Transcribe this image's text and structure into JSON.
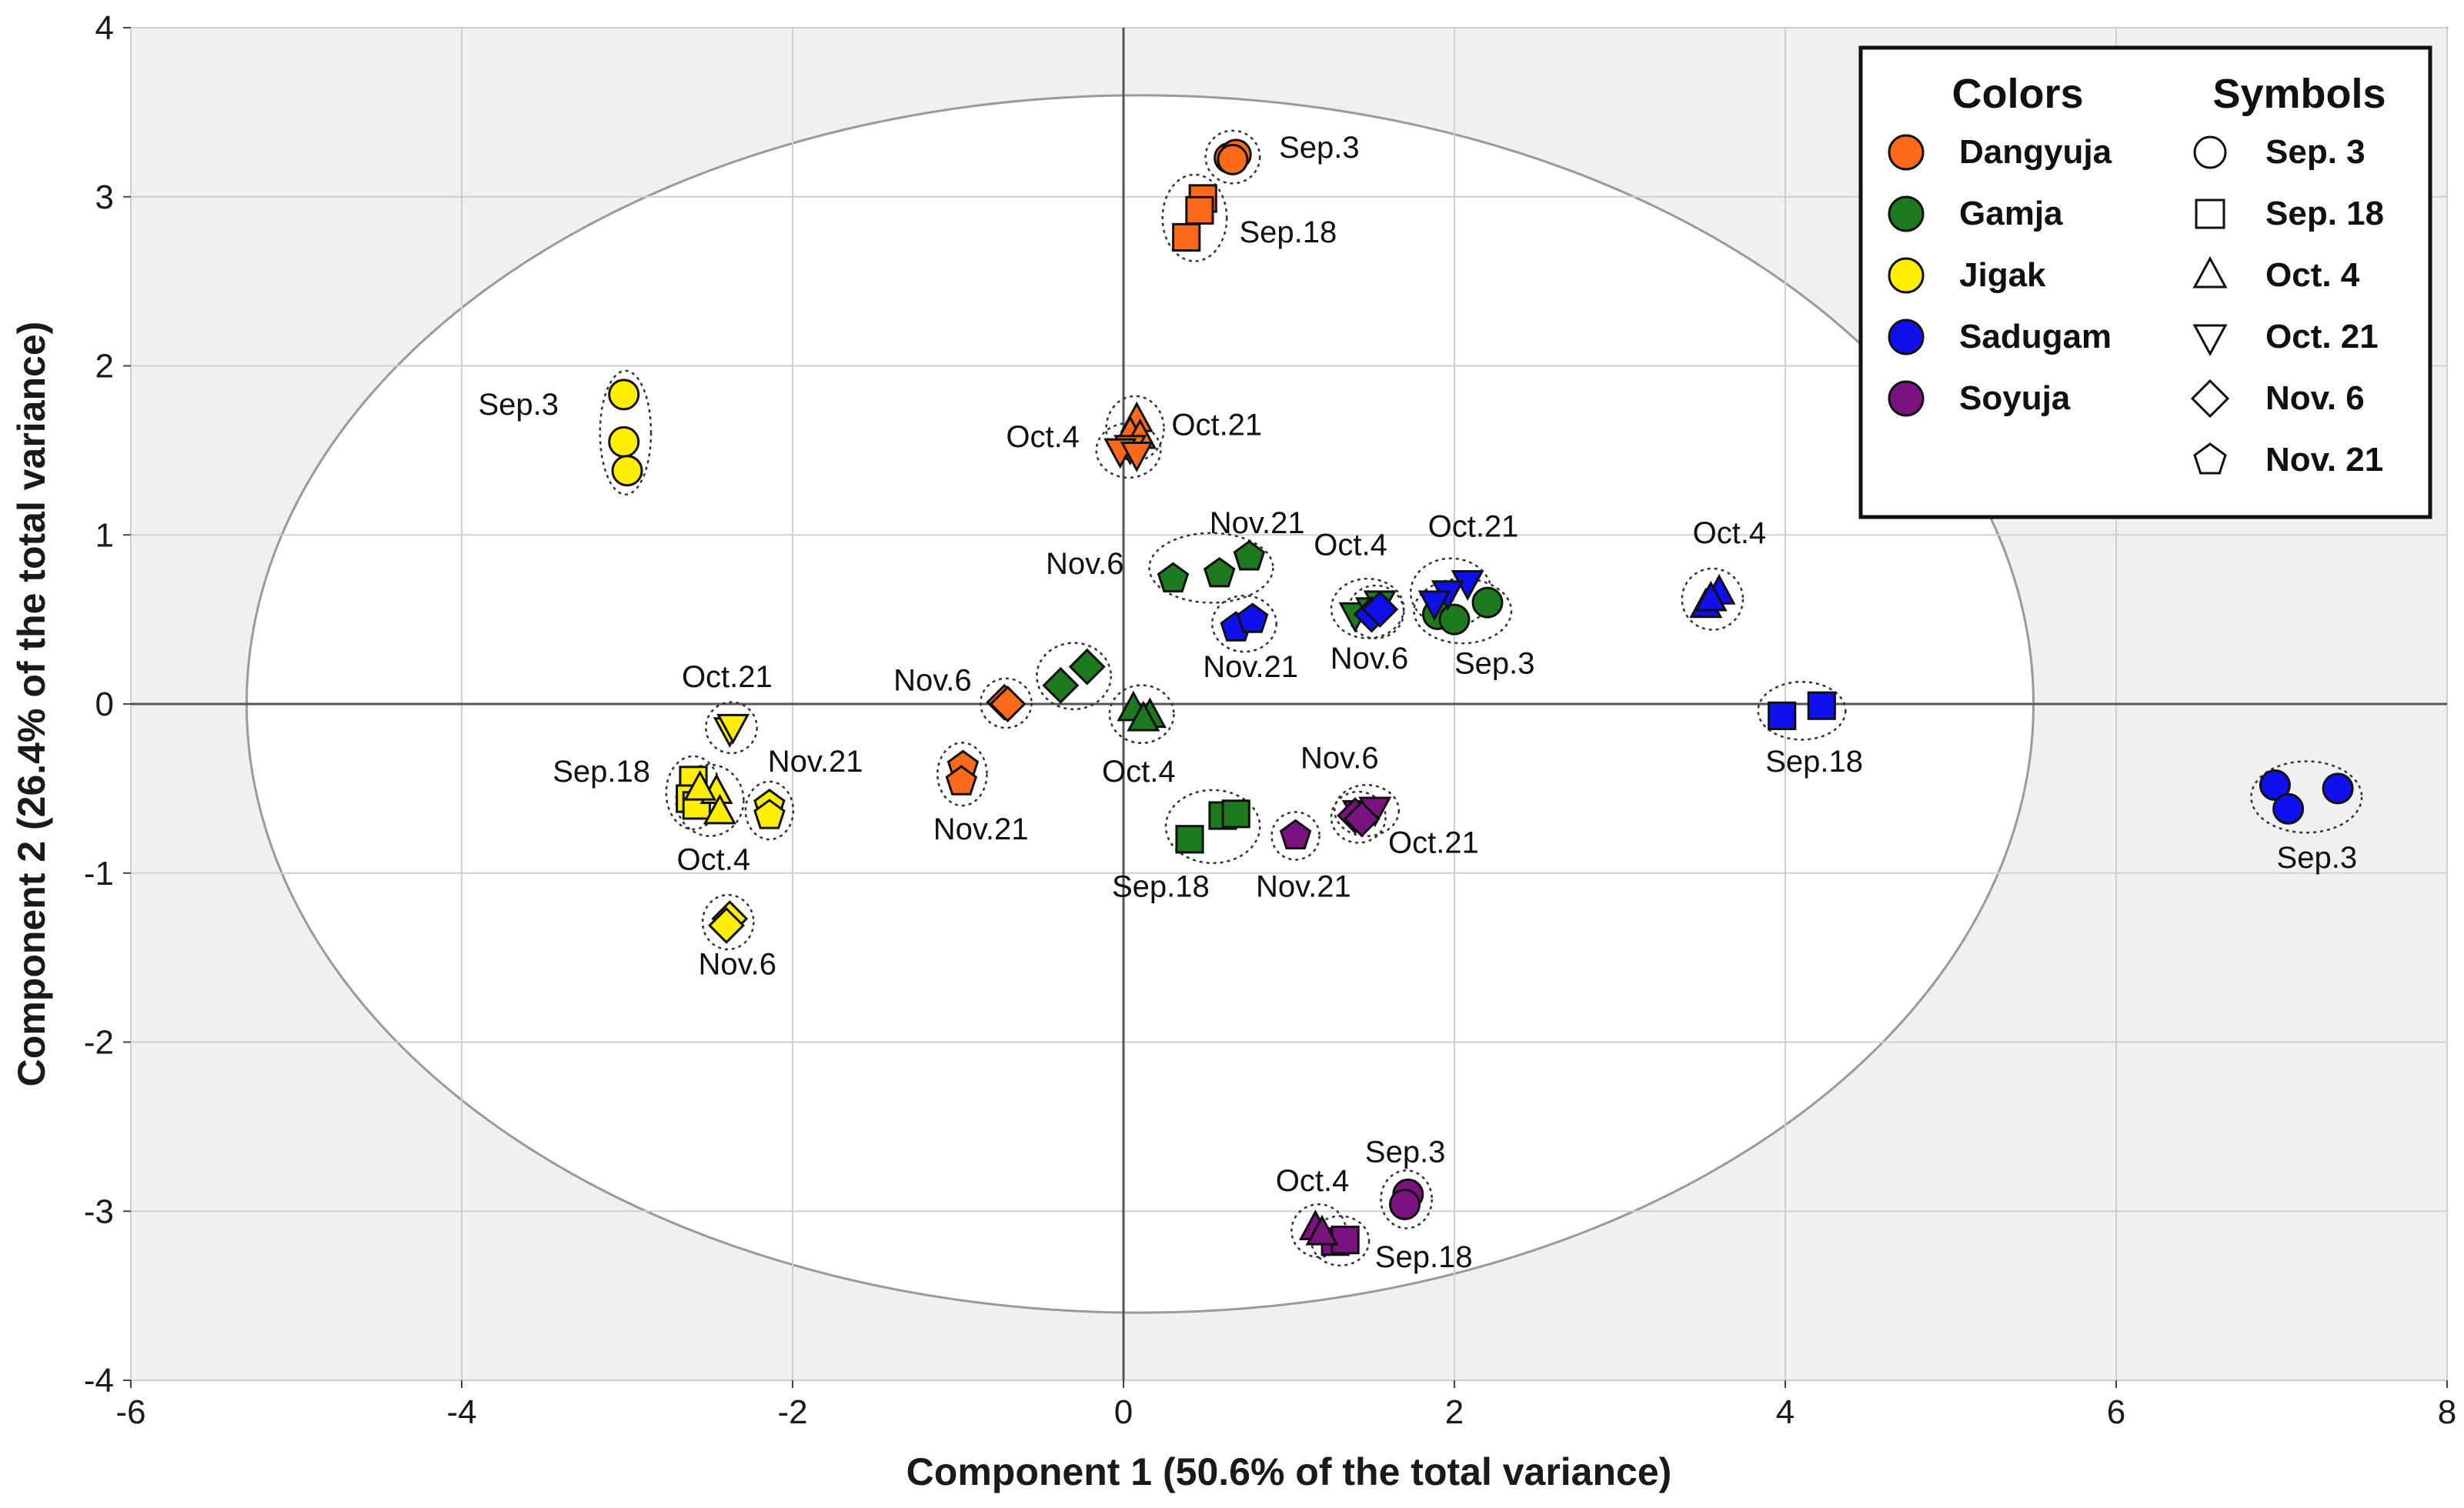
{
  "chart_data": {
    "type": "scatter",
    "xlabel": "Component 1 (50.6% of the total variance)",
    "ylabel": "Component 2 (26.4% of the total variance)",
    "xlim": [
      -6,
      8
    ],
    "ylim": [
      -4,
      4
    ],
    "xticks": [
      -6,
      -4,
      -2,
      0,
      2,
      4,
      6,
      8
    ],
    "yticks": [
      -4,
      -3,
      -2,
      -1,
      0,
      1,
      2,
      3,
      4
    ],
    "grid": true,
    "confidence_ellipse": {
      "center": [
        0.1,
        0
      ],
      "radius_x": 5.4,
      "radius_y": 3.6
    },
    "legend": {
      "position": "top-right",
      "colors_title": "Colors",
      "symbols_title": "Symbols",
      "colors": [
        {
          "name": "Dangyuja",
          "color": "#ff6a1a"
        },
        {
          "name": "Gamja",
          "color": "#1e7a1e"
        },
        {
          "name": "Jigak",
          "color": "#ffee00"
        },
        {
          "name": "Sadugam",
          "color": "#1010ee"
        },
        {
          "name": "Soyuja",
          "color": "#7a1280"
        }
      ],
      "symbols": [
        {
          "name": "Sep. 3",
          "shape": "circle"
        },
        {
          "name": "Sep. 18",
          "shape": "square"
        },
        {
          "name": "Oct. 4",
          "shape": "triangle-up"
        },
        {
          "name": "Oct. 21",
          "shape": "triangle-down"
        },
        {
          "name": "Nov. 6",
          "shape": "diamond"
        },
        {
          "name": "Nov. 21",
          "shape": "pentagon"
        }
      ]
    },
    "series": [
      {
        "name": "Dangyuja",
        "color": "#ff6a1a",
        "groups": [
          {
            "label": "Sep.3",
            "shape": "circle",
            "points": [
              [
                0.64,
                3.23
              ],
              [
                0.68,
                3.25
              ],
              [
                0.66,
                3.22
              ]
            ]
          },
          {
            "label": "Sep.18",
            "shape": "square",
            "points": [
              [
                0.48,
                2.99
              ],
              [
                0.46,
                2.92
              ],
              [
                0.38,
                2.76
              ]
            ]
          },
          {
            "label": "Oct.4",
            "shape": "triangle-up",
            "points": [
              [
                0.08,
                1.68
              ],
              [
                0.04,
                1.6
              ],
              [
                0.1,
                1.58
              ]
            ]
          },
          {
            "label": "Oct.21",
            "shape": "triangle-down",
            "points": [
              [
                0.04,
                1.52
              ],
              [
                -0.02,
                1.5
              ],
              [
                0.08,
                1.48
              ]
            ]
          },
          {
            "label": "Nov.6",
            "shape": "diamond",
            "points": [
              [
                -0.72,
                0.01
              ],
              [
                -0.7,
                0.0
              ]
            ]
          },
          {
            "label": "Nov.21",
            "shape": "pentagon",
            "points": [
              [
                -0.97,
                -0.37
              ],
              [
                -0.98,
                -0.46
              ]
            ]
          }
        ]
      },
      {
        "name": "Gamja",
        "color": "#1e7a1e",
        "groups": [
          {
            "label": "Sep.3",
            "shape": "circle",
            "points": [
              [
                1.9,
                0.53
              ],
              [
                2.0,
                0.5
              ],
              [
                2.2,
                0.6
              ]
            ]
          },
          {
            "label": "Sep.18",
            "shape": "square",
            "points": [
              [
                0.4,
                -0.8
              ],
              [
                0.6,
                -0.66
              ],
              [
                0.68,
                -0.65
              ]
            ]
          },
          {
            "label": "Oct.4",
            "shape": "triangle-up",
            "points": [
              [
                0.06,
                -0.03
              ],
              [
                0.16,
                -0.07
              ],
              [
                0.12,
                -0.09
              ]
            ]
          },
          {
            "label": "Oct.21",
            "shape": "triangle-down",
            "points": [
              [
                1.55,
                0.6
              ],
              [
                1.4,
                0.53
              ],
              [
                1.5,
                0.56
              ]
            ]
          },
          {
            "label": "Nov.6",
            "shape": "diamond",
            "points": [
              [
                -0.38,
                0.11
              ],
              [
                -0.22,
                0.22
              ]
            ]
          },
          {
            "label": "Nov.21",
            "shape": "pentagon",
            "points": [
              [
                0.3,
                0.74
              ],
              [
                0.58,
                0.77
              ],
              [
                0.76,
                0.87
              ]
            ]
          }
        ]
      },
      {
        "name": "Jigak",
        "color": "#ffee00",
        "groups": [
          {
            "label": "Sep.3",
            "shape": "circle",
            "points": [
              [
                -3.02,
                1.83
              ],
              [
                -3.02,
                1.55
              ],
              [
                -3.0,
                1.38
              ]
            ]
          },
          {
            "label": "Sep.18",
            "shape": "square",
            "points": [
              [
                -2.6,
                -0.45
              ],
              [
                -2.62,
                -0.56
              ],
              [
                -2.58,
                -0.6
              ]
            ]
          },
          {
            "label": "Oct.4",
            "shape": "triangle-up",
            "points": [
              [
                -2.46,
                -0.52
              ],
              [
                -2.44,
                -0.64
              ],
              [
                -2.56,
                -0.5
              ]
            ]
          },
          {
            "label": "Oct.21",
            "shape": "triangle-down",
            "points": [
              [
                -2.38,
                -0.15
              ],
              [
                -2.36,
                -0.13
              ]
            ]
          },
          {
            "label": "Nov.6",
            "shape": "diamond",
            "points": [
              [
                -2.38,
                -1.27
              ],
              [
                -2.4,
                -1.31
              ]
            ]
          },
          {
            "label": "Nov.21",
            "shape": "pentagon",
            "points": [
              [
                -2.14,
                -0.6
              ],
              [
                -2.14,
                -0.66
              ]
            ]
          }
        ]
      },
      {
        "name": "Sadugam",
        "color": "#1010ee",
        "groups": [
          {
            "label": "Sep.3",
            "shape": "circle",
            "points": [
              [
                6.96,
                -0.48
              ],
              [
                7.04,
                -0.62
              ],
              [
                7.34,
                -0.5
              ]
            ]
          },
          {
            "label": "Sep.18",
            "shape": "square",
            "points": [
              [
                3.98,
                -0.07
              ],
              [
                4.22,
                -0.01
              ]
            ]
          },
          {
            "label": "Oct.4",
            "shape": "triangle-up",
            "points": [
              [
                3.52,
                0.58
              ],
              [
                3.6,
                0.66
              ],
              [
                3.55,
                0.62
              ]
            ]
          },
          {
            "label": "Oct.21",
            "shape": "triangle-down",
            "points": [
              [
                2.08,
                0.72
              ],
              [
                1.96,
                0.66
              ],
              [
                1.88,
                0.6
              ]
            ]
          },
          {
            "label": "Nov.6",
            "shape": "diamond",
            "points": [
              [
                1.5,
                0.53
              ],
              [
                1.55,
                0.56
              ]
            ]
          },
          {
            "label": "Nov.21",
            "shape": "pentagon",
            "points": [
              [
                0.68,
                0.45
              ],
              [
                0.78,
                0.5
              ]
            ]
          }
        ]
      },
      {
        "name": "Soyuja",
        "color": "#7a1280",
        "groups": [
          {
            "label": "Sep.3",
            "shape": "circle",
            "points": [
              [
                1.72,
                -2.9
              ],
              [
                1.7,
                -2.96
              ]
            ]
          },
          {
            "label": "Sep.18",
            "shape": "square",
            "points": [
              [
                1.28,
                -3.18
              ],
              [
                1.34,
                -3.17
              ]
            ]
          },
          {
            "label": "Oct.4",
            "shape": "triangle-up",
            "points": [
              [
                1.16,
                -3.1
              ],
              [
                1.2,
                -3.13
              ]
            ]
          },
          {
            "label": "Oct.21",
            "shape": "triangle-down",
            "points": [
              [
                1.42,
                -0.64
              ],
              [
                1.52,
                -0.62
              ]
            ]
          },
          {
            "label": "Nov.6",
            "shape": "diamond",
            "points": [
              [
                1.4,
                -0.66
              ],
              [
                1.44,
                -0.68
              ]
            ]
          },
          {
            "label": "Nov.21",
            "shape": "pentagon",
            "points": [
              [
                1.04,
                -0.78
              ]
            ]
          }
        ]
      }
    ],
    "annotations": [
      {
        "text": "Sep.3",
        "x": 0.94,
        "y": 3.23
      },
      {
        "text": "Sep.18",
        "x": 0.7,
        "y": 2.73
      },
      {
        "text": "Sep.3",
        "x": -3.9,
        "y": 1.71
      },
      {
        "text": "Oct.4",
        "x": -0.71,
        "y": 1.52
      },
      {
        "text": "Oct.21",
        "x": 0.29,
        "y": 1.59
      },
      {
        "text": "Nov.21",
        "x": 0.52,
        "y": 1.01
      },
      {
        "text": "Oct.4",
        "x": 1.15,
        "y": 0.88
      },
      {
        "text": "Oct.21",
        "x": 1.84,
        "y": 0.99
      },
      {
        "text": "Oct.4",
        "x": 3.44,
        "y": 0.95
      },
      {
        "text": "Nov.6",
        "x": -0.47,
        "y": 0.77
      },
      {
        "text": "Nov.21",
        "x": 0.48,
        "y": 0.16
      },
      {
        "text": "Nov.6",
        "x": 1.25,
        "y": 0.21
      },
      {
        "text": "Sep.3",
        "x": 2.0,
        "y": 0.18
      },
      {
        "text": "Oct.21",
        "x": -2.67,
        "y": 0.1
      },
      {
        "text": "Nov.6",
        "x": -1.39,
        "y": 0.08
      },
      {
        "text": "Nov.21",
        "x": -2.15,
        "y": -0.4
      },
      {
        "text": "Sep.18",
        "x": -3.45,
        "y": -0.46
      },
      {
        "text": "Oct.4",
        "x": -0.13,
        "y": -0.46
      },
      {
        "text": "Sep.18",
        "x": 3.88,
        "y": -0.4
      },
      {
        "text": "Nov.6",
        "x": 1.07,
        "y": -0.38
      },
      {
        "text": "Nov.21",
        "x": -1.15,
        "y": -0.8
      },
      {
        "text": "Oct.21",
        "x": 1.6,
        "y": -0.88
      },
      {
        "text": "Sep.3",
        "x": 6.97,
        "y": -0.97
      },
      {
        "text": "Sep.18",
        "x": -0.07,
        "y": -1.14
      },
      {
        "text": "Nov.21",
        "x": 0.8,
        "y": -1.14
      },
      {
        "text": "Oct.4",
        "x": -2.7,
        "y": -0.98
      },
      {
        "text": "Nov.6",
        "x": -2.57,
        "y": -1.6
      },
      {
        "text": "Sep.3",
        "x": 1.46,
        "y": -2.71
      },
      {
        "text": "Oct.4",
        "x": 0.92,
        "y": -2.88
      },
      {
        "text": "Sep.18",
        "x": 1.52,
        "y": -3.33
      }
    ]
  }
}
